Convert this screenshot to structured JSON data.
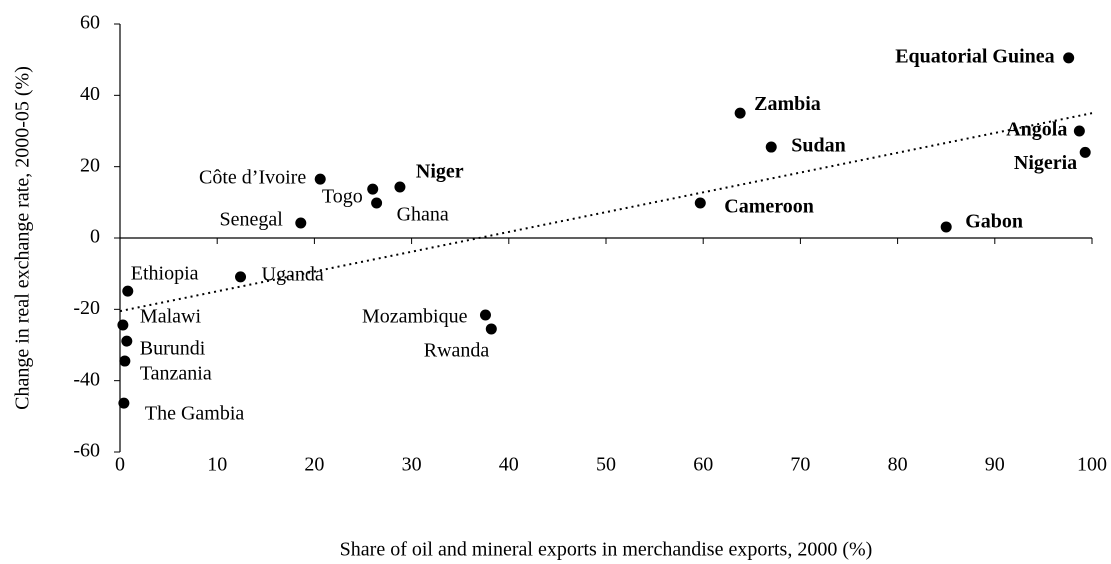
{
  "chart_data": {
    "type": "scatter",
    "x_label": "Share of oil and mineral exports in merchandise exports, 2000 (%)",
    "y_label": "Change in real exchange rate, 2000-05 (%)",
    "labels": [
      "Equatorial Guinea",
      "Zambia",
      "Angola",
      "Sudan",
      "Nigeria",
      "Côte d’Ivoire",
      "Togo",
      "Niger",
      "Ghana",
      "Cameroon",
      "Senegal",
      "Gabon",
      "Uganda",
      "Ethiopia",
      "Mozambique",
      "Rwanda",
      "Malawi",
      "Burundi",
      "Tanzania",
      "The Gambia"
    ],
    "x": [
      97.6,
      63.8,
      98.7,
      67,
      99.3,
      20.6,
      26,
      28.8,
      26.4,
      59.7,
      18.6,
      85,
      12.4,
      0.8,
      37.6,
      38.2,
      0.3,
      0.7,
      0.5,
      0.4
    ],
    "y": [
      50.5,
      35,
      30,
      25.5,
      24,
      16.5,
      13.7,
      14.3,
      9.8,
      9.8,
      4.2,
      3.1,
      -10.9,
      -14.9,
      -21.6,
      -25.5,
      -24.4,
      -28.9,
      -34.5,
      -46.3
    ],
    "bold": [
      true,
      true,
      true,
      true,
      true,
      false,
      false,
      true,
      false,
      true,
      false,
      true,
      false,
      false,
      false,
      false,
      false,
      false,
      false,
      false
    ],
    "color": "#000000",
    "trendline": {
      "x": [
        0,
        100
      ],
      "y": [
        -20.5,
        35
      ]
    },
    "xlim": [
      0,
      100
    ],
    "ylim": [
      -60,
      60
    ],
    "xticks": [
      0,
      10,
      20,
      30,
      40,
      50,
      60,
      70,
      80,
      90,
      100
    ],
    "yticks": [
      -60,
      -40,
      -20,
      0,
      20,
      40,
      60
    ]
  }
}
